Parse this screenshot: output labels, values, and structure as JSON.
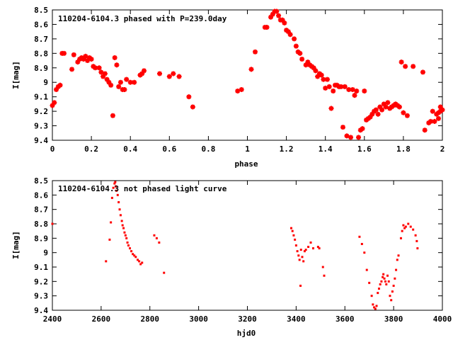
{
  "chart_data": [
    {
      "type": "scatter",
      "title": "110204-6104.3 phased with P=239.0day",
      "xlabel": "phase",
      "ylabel": "I[mag]",
      "xlim": [
        0,
        2
      ],
      "ylim": [
        8.5,
        9.4
      ],
      "y_inverted": true,
      "grid": false,
      "legend": "none",
      "marker_color": "#ff0000",
      "x_ticks": [
        "0",
        "0.2",
        "0.4",
        "0.6",
        "0.8",
        "1",
        "1.2",
        "1.4",
        "1.6",
        "1.8",
        "2"
      ],
      "y_ticks": [
        "8.5",
        "8.6",
        "8.7",
        "8.8",
        "8.9",
        "9",
        "9.1",
        "9.2",
        "9.3",
        "9.4"
      ],
      "points": [
        [
          0.0,
          9.16
        ],
        [
          0.01,
          9.14
        ],
        [
          0.02,
          9.05
        ],
        [
          0.03,
          9.03
        ],
        [
          0.04,
          9.02
        ],
        [
          0.05,
          8.8
        ],
        [
          0.06,
          8.8
        ],
        [
          0.1,
          8.91
        ],
        [
          0.11,
          8.81
        ],
        [
          0.13,
          8.86
        ],
        [
          0.14,
          8.84
        ],
        [
          0.15,
          8.83
        ],
        [
          0.16,
          8.84
        ],
        [
          0.17,
          8.82
        ],
        [
          0.18,
          8.85
        ],
        [
          0.19,
          8.83
        ],
        [
          0.2,
          8.84
        ],
        [
          0.21,
          8.89
        ],
        [
          0.22,
          8.9
        ],
        [
          0.24,
          8.9
        ],
        [
          0.25,
          8.93
        ],
        [
          0.26,
          8.96
        ],
        [
          0.27,
          8.94
        ],
        [
          0.28,
          8.98
        ],
        [
          0.29,
          9.0
        ],
        [
          0.3,
          9.02
        ],
        [
          0.31,
          9.23
        ],
        [
          0.32,
          8.83
        ],
        [
          0.33,
          8.88
        ],
        [
          0.34,
          9.03
        ],
        [
          0.35,
          9.0
        ],
        [
          0.36,
          9.05
        ],
        [
          0.37,
          9.05
        ],
        [
          0.38,
          8.98
        ],
        [
          0.4,
          9.0
        ],
        [
          0.42,
          9.0
        ],
        [
          0.45,
          8.95
        ],
        [
          0.46,
          8.94
        ],
        [
          0.47,
          8.92
        ],
        [
          0.55,
          8.94
        ],
        [
          0.6,
          8.96
        ],
        [
          0.62,
          8.94
        ],
        [
          0.65,
          8.96
        ],
        [
          0.7,
          9.1
        ],
        [
          0.72,
          9.17
        ],
        [
          0.95,
          9.06
        ],
        [
          0.97,
          9.05
        ],
        [
          1.02,
          8.91
        ],
        [
          1.04,
          8.79
        ],
        [
          1.09,
          8.62
        ],
        [
          1.1,
          8.62
        ],
        [
          1.12,
          8.55
        ],
        [
          1.13,
          8.53
        ],
        [
          1.14,
          8.51
        ],
        [
          1.15,
          8.51
        ],
        [
          1.16,
          8.54
        ],
        [
          1.17,
          8.57
        ],
        [
          1.18,
          8.57
        ],
        [
          1.19,
          8.59
        ],
        [
          1.2,
          8.64
        ],
        [
          1.21,
          8.65
        ],
        [
          1.22,
          8.67
        ],
        [
          1.24,
          8.7
        ],
        [
          1.25,
          8.75
        ],
        [
          1.26,
          8.79
        ],
        [
          1.27,
          8.8
        ],
        [
          1.28,
          8.84
        ],
        [
          1.3,
          8.88
        ],
        [
          1.31,
          8.86
        ],
        [
          1.32,
          8.88
        ],
        [
          1.33,
          8.89
        ],
        [
          1.34,
          8.9
        ],
        [
          1.35,
          8.92
        ],
        [
          1.36,
          8.96
        ],
        [
          1.37,
          8.94
        ],
        [
          1.38,
          8.95
        ],
        [
          1.39,
          8.98
        ],
        [
          1.4,
          9.04
        ],
        [
          1.41,
          8.98
        ],
        [
          1.42,
          9.03
        ],
        [
          1.43,
          9.18
        ],
        [
          1.44,
          9.06
        ],
        [
          1.45,
          9.02
        ],
        [
          1.46,
          9.02
        ],
        [
          1.47,
          9.03
        ],
        [
          1.48,
          9.03
        ],
        [
          1.49,
          9.31
        ],
        [
          1.5,
          9.03
        ],
        [
          1.51,
          9.37
        ],
        [
          1.52,
          9.05
        ],
        [
          1.53,
          9.38
        ],
        [
          1.54,
          9.05
        ],
        [
          1.55,
          9.09
        ],
        [
          1.56,
          9.06
        ],
        [
          1.57,
          9.38
        ],
        [
          1.58,
          9.33
        ],
        [
          1.59,
          9.32
        ],
        [
          1.6,
          9.06
        ],
        [
          1.61,
          9.26
        ],
        [
          1.62,
          9.25
        ],
        [
          1.63,
          9.24
        ],
        [
          1.64,
          9.22
        ],
        [
          1.65,
          9.2
        ],
        [
          1.66,
          9.19
        ],
        [
          1.67,
          9.22
        ],
        [
          1.68,
          9.17
        ],
        [
          1.69,
          9.19
        ],
        [
          1.7,
          9.15
        ],
        [
          1.71,
          9.17
        ],
        [
          1.72,
          9.14
        ],
        [
          1.73,
          9.18
        ],
        [
          1.74,
          9.17
        ],
        [
          1.75,
          9.16
        ],
        [
          1.76,
          9.15
        ],
        [
          1.77,
          9.16
        ],
        [
          1.78,
          9.17
        ],
        [
          1.79,
          8.86
        ],
        [
          1.8,
          9.21
        ],
        [
          1.81,
          8.89
        ],
        [
          1.82,
          9.23
        ],
        [
          1.85,
          8.89
        ],
        [
          1.9,
          8.93
        ],
        [
          1.91,
          9.33
        ],
        [
          1.93,
          9.28
        ],
        [
          1.94,
          9.27
        ],
        [
          1.95,
          9.2
        ],
        [
          1.96,
          9.27
        ],
        [
          1.97,
          9.22
        ],
        [
          1.98,
          9.25
        ],
        [
          1.99,
          9.2
        ],
        [
          2.0,
          9.19
        ],
        [
          1.99,
          9.17
        ],
        [
          1.98,
          9.21
        ]
      ]
    },
    {
      "type": "scatter",
      "title": "110204-6104.3 not phased light curve",
      "xlabel": "hjd0",
      "ylabel": "I[mag]",
      "xlim": [
        2400,
        4000
      ],
      "ylim": [
        8.5,
        9.4
      ],
      "y_inverted": true,
      "grid": false,
      "legend": "none",
      "marker_color": "#ff0000",
      "x_ticks": [
        "2400",
        "2600",
        "2800",
        "3000",
        "3200",
        "3400",
        "3600",
        "3800",
        "4000"
      ],
      "y_ticks": [
        "8.5",
        "8.6",
        "8.7",
        "8.8",
        "8.9",
        "9",
        "9.1",
        "9.2",
        "9.3",
        "9.4"
      ],
      "points": [
        [
          2400,
          8.8
        ],
        [
          2620,
          9.06
        ],
        [
          2635,
          8.91
        ],
        [
          2640,
          8.79
        ],
        [
          2645,
          8.62
        ],
        [
          2650,
          8.55
        ],
        [
          2655,
          8.52
        ],
        [
          2658,
          8.51
        ],
        [
          2660,
          8.54
        ],
        [
          2663,
          8.57
        ],
        [
          2668,
          8.6
        ],
        [
          2672,
          8.65
        ],
        [
          2676,
          8.7
        ],
        [
          2680,
          8.74
        ],
        [
          2685,
          8.78
        ],
        [
          2688,
          8.81
        ],
        [
          2692,
          8.83
        ],
        [
          2696,
          8.86
        ],
        [
          2700,
          8.88
        ],
        [
          2704,
          8.9
        ],
        [
          2708,
          8.93
        ],
        [
          2712,
          8.95
        ],
        [
          2718,
          8.97
        ],
        [
          2724,
          8.99
        ],
        [
          2730,
          9.01
        ],
        [
          2736,
          9.02
        ],
        [
          2742,
          9.03
        ],
        [
          2750,
          9.05
        ],
        [
          2756,
          9.06
        ],
        [
          2762,
          9.08
        ],
        [
          2768,
          9.07
        ],
        [
          2818,
          8.88
        ],
        [
          2828,
          8.9
        ],
        [
          2838,
          8.93
        ],
        [
          2858,
          9.14
        ],
        [
          3380,
          8.83
        ],
        [
          3385,
          8.85
        ],
        [
          3390,
          8.88
        ],
        [
          3395,
          8.91
        ],
        [
          3400,
          8.95
        ],
        [
          3405,
          8.99
        ],
        [
          3410,
          9.02
        ],
        [
          3414,
          9.05
        ],
        [
          3418,
          9.23
        ],
        [
          3420,
          8.98
        ],
        [
          3425,
          9.03
        ],
        [
          3430,
          9.06
        ],
        [
          3435,
          8.99
        ],
        [
          3440,
          8.98
        ],
        [
          3450,
          8.96
        ],
        [
          3460,
          8.93
        ],
        [
          3470,
          8.97
        ],
        [
          3490,
          8.96
        ],
        [
          3495,
          8.97
        ],
        [
          3510,
          9.1
        ],
        [
          3515,
          9.16
        ],
        [
          3660,
          8.89
        ],
        [
          3670,
          8.94
        ],
        [
          3680,
          9.0
        ],
        [
          3690,
          9.12
        ],
        [
          3700,
          9.21
        ],
        [
          3710,
          9.3
        ],
        [
          3715,
          9.36
        ],
        [
          3720,
          9.38
        ],
        [
          3725,
          9.39
        ],
        [
          3730,
          9.37
        ],
        [
          3735,
          9.28
        ],
        [
          3740,
          9.25
        ],
        [
          3745,
          9.22
        ],
        [
          3750,
          9.2
        ],
        [
          3755,
          9.17
        ],
        [
          3758,
          9.15
        ],
        [
          3762,
          9.18
        ],
        [
          3766,
          9.2
        ],
        [
          3770,
          9.22
        ],
        [
          3775,
          9.16
        ],
        [
          3780,
          9.2
        ],
        [
          3785,
          9.3
        ],
        [
          3790,
          9.33
        ],
        [
          3795,
          9.27
        ],
        [
          3800,
          9.23
        ],
        [
          3805,
          9.18
        ],
        [
          3810,
          9.12
        ],
        [
          3815,
          9.05
        ],
        [
          3820,
          9.02
        ],
        [
          3830,
          8.9
        ],
        [
          3835,
          8.85
        ],
        [
          3840,
          8.81
        ],
        [
          3845,
          8.83
        ],
        [
          3850,
          8.82
        ],
        [
          3860,
          8.8
        ],
        [
          3870,
          8.82
        ],
        [
          3880,
          8.84
        ],
        [
          3890,
          8.88
        ],
        [
          3895,
          8.92
        ],
        [
          3898,
          8.97
        ]
      ]
    }
  ]
}
